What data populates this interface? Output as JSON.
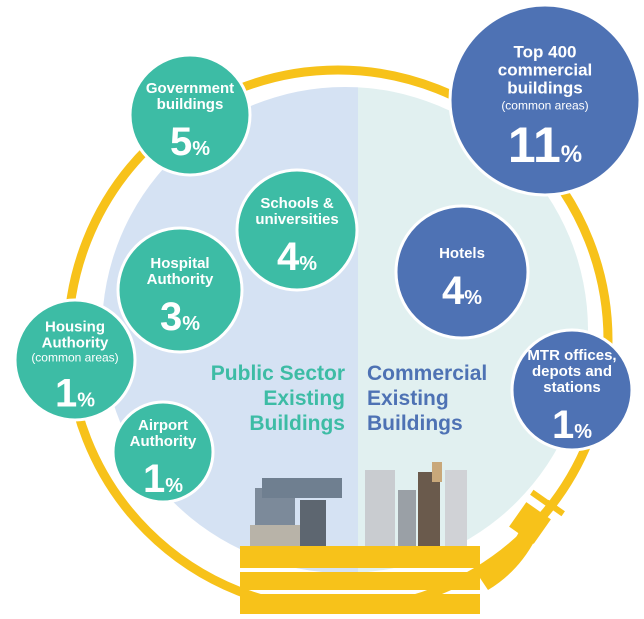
{
  "sections": [
    {
      "title_lines": [
        "Public Sector",
        "Existing",
        "Buildings"
      ],
      "color": "#3dbca5",
      "bubbles": [
        {
          "label_lines": [
            "Government",
            "buildings"
          ],
          "value": 5,
          "unit": "%"
        },
        {
          "label_lines": [
            "Schools &",
            "universities"
          ],
          "value": 4,
          "unit": "%"
        },
        {
          "label_lines": [
            "Hospital",
            "Authority"
          ],
          "value": 3,
          "unit": "%"
        },
        {
          "label_lines": [
            "Housing",
            "Authority"
          ],
          "note": "(common areas)",
          "value": 1,
          "unit": "%"
        },
        {
          "label_lines": [
            "Airport",
            "Authority"
          ],
          "value": 1,
          "unit": "%"
        }
      ]
    },
    {
      "title_lines": [
        "Commercial",
        "Existing",
        "Buildings"
      ],
      "color": "#4e72b4",
      "bubbles": [
        {
          "label_lines": [
            "Top 400",
            "commercial",
            "buildings"
          ],
          "note": "(common areas)",
          "value": 11,
          "unit": "%"
        },
        {
          "label_lines": [
            "Hotels"
          ],
          "value": 4,
          "unit": "%"
        },
        {
          "label_lines": [
            "MTR offices,",
            "depots and",
            "stations"
          ],
          "value": 1,
          "unit": "%"
        }
      ]
    }
  ]
}
